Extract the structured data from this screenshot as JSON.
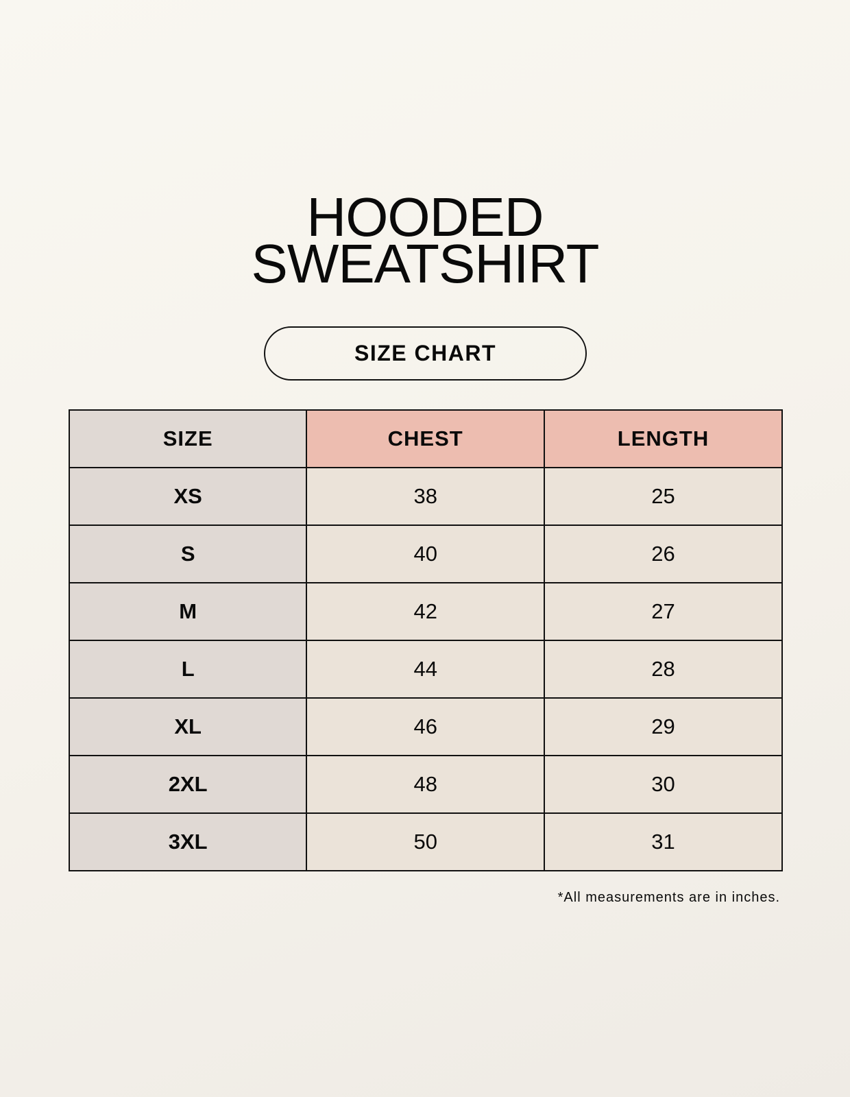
{
  "title": {
    "line1": "HOODED",
    "line2": "SWEATSHIRT"
  },
  "badge": "SIZE CHART",
  "colors": {
    "background": "#f8f6f0",
    "size_column": "#e0d9d4",
    "header_accent": "#edbdb0",
    "data_cells": "#ebe3d9"
  },
  "table": {
    "headers": [
      "SIZE",
      "CHEST",
      "LENGTH"
    ],
    "rows": [
      {
        "size": "XS",
        "chest": "38",
        "length": "25"
      },
      {
        "size": "S",
        "chest": "40",
        "length": "26"
      },
      {
        "size": "M",
        "chest": "42",
        "length": "27"
      },
      {
        "size": "L",
        "chest": "44",
        "length": "28"
      },
      {
        "size": "XL",
        "chest": "46",
        "length": "29"
      },
      {
        "size": "2XL",
        "chest": "48",
        "length": "30"
      },
      {
        "size": "3XL",
        "chest": "50",
        "length": "31"
      }
    ]
  },
  "footnote": "*All measurements are in inches."
}
